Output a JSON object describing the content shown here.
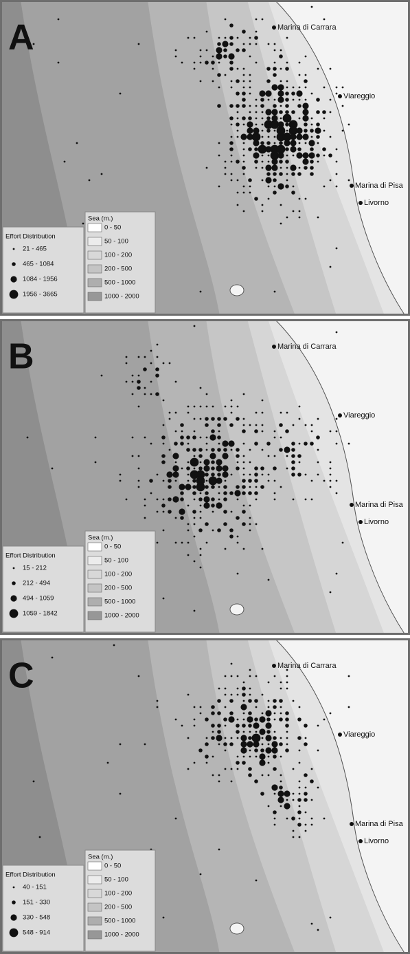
{
  "panels": [
    {
      "label": "A",
      "places": [
        "Marina di Carrara",
        "Viareggio",
        "Marina di Pisa",
        "Livorno"
      ],
      "effort_legend": {
        "title": "Effort Distribution",
        "classes": [
          "21 - 465",
          "465 - 1084",
          "1084 - 1956",
          "1956 - 3665"
        ]
      },
      "sea_legend": {
        "title": "Sea (m.)",
        "classes": [
          "0 - 50",
          "50 - 100",
          "100 - 200",
          "200 - 500",
          "500 - 1000",
          "1000 - 2000"
        ]
      }
    },
    {
      "label": "B",
      "places": [
        "Marina di Carrara",
        "Viareggio",
        "Marina di Pisa",
        "Livorno"
      ],
      "effort_legend": {
        "title": "Effort Distribution",
        "classes": [
          "15 - 212",
          "212 - 494",
          "494 - 1059",
          "1059 - 1842"
        ]
      },
      "sea_legend": {
        "title": "Sea (m.)",
        "classes": [
          "0 - 50",
          "50 - 100",
          "100 - 200",
          "200 - 500",
          "500 - 1000",
          "1000 - 2000"
        ]
      }
    },
    {
      "label": "C",
      "places": [
        "Marina di Carrara",
        "Viareggio",
        "Marina di Pisa",
        "Livorno"
      ],
      "effort_legend": {
        "title": "Effort Distribution",
        "classes": [
          "40 - 151",
          "151 - 330",
          "330 - 548",
          "548 - 914"
        ]
      },
      "sea_legend": {
        "title": "Sea (m.)",
        "classes": [
          "0 - 50",
          "50 - 100",
          "100 - 200",
          "200 - 500",
          "500 - 1000",
          "1000 - 2000"
        ]
      }
    }
  ]
}
